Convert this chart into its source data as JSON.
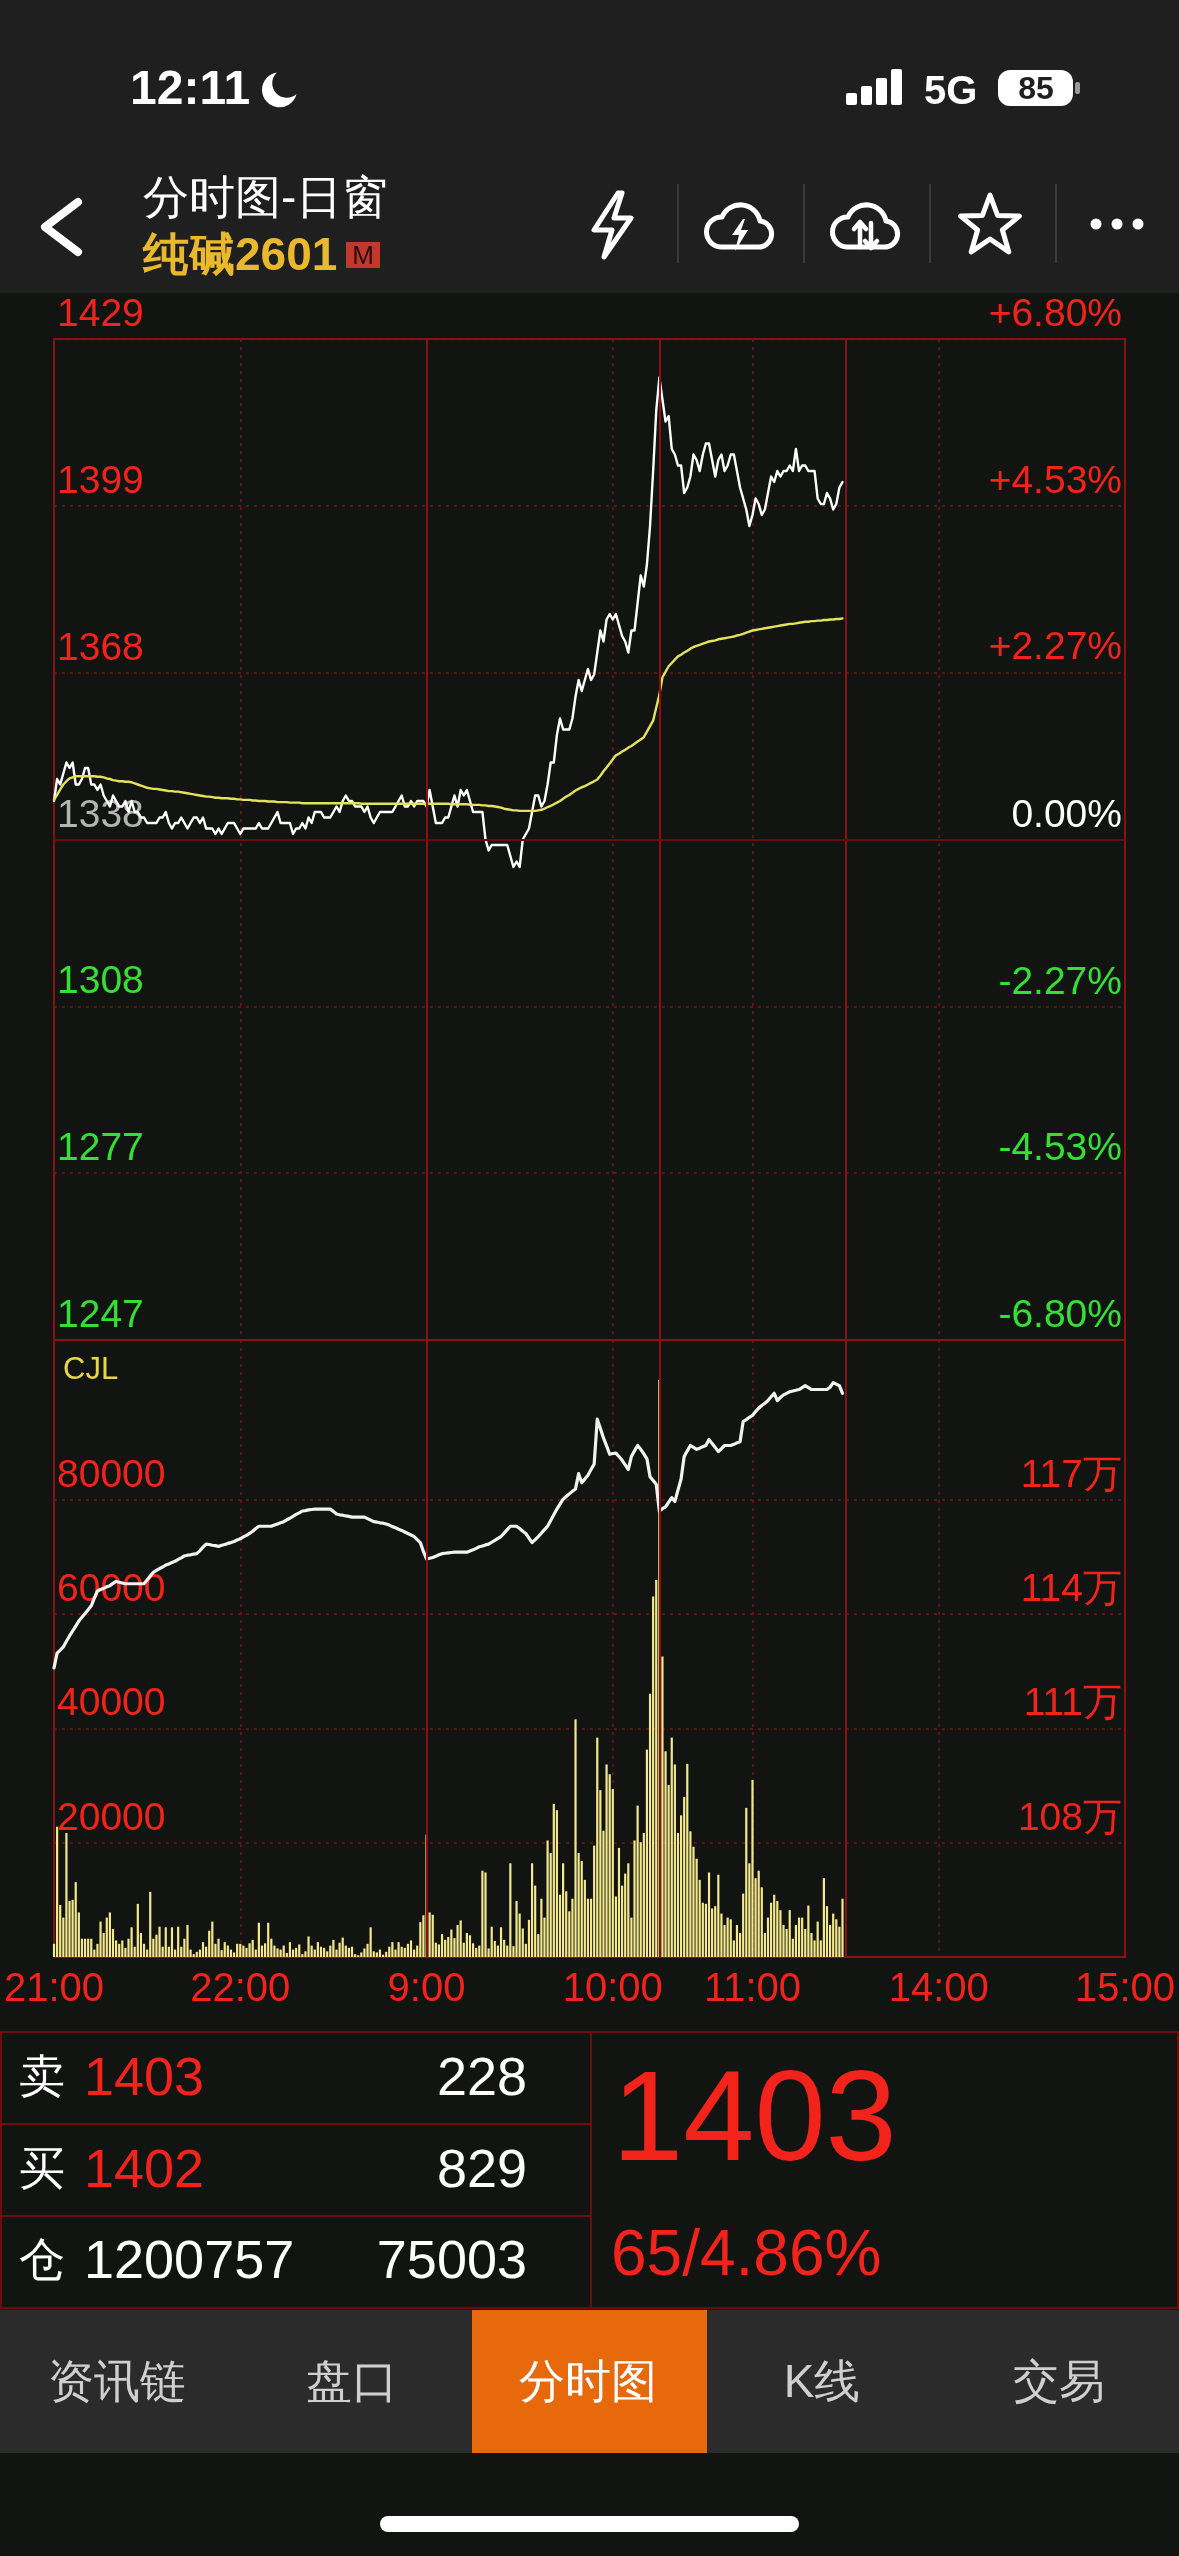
{
  "chart_data": [
    {
      "type": "other",
      "title": "分时图-日窗",
      "subtitle": "纯碱2601",
      "annotations": [
        "12:11",
        "5G",
        "85",
        "M"
      ]
    },
    {
      "type": "line",
      "grid": true,
      "categories": [
        null,
        null,
        null,
        null,
        null,
        null,
        null,
        null,
        null,
        null,
        null,
        null,
        null,
        null,
        null,
        null,
        null,
        null,
        null,
        null,
        null,
        null,
        null,
        null,
        null,
        null,
        null,
        null,
        null,
        null,
        null,
        null,
        null,
        null,
        null,
        null,
        null,
        null,
        null,
        null,
        null,
        null,
        null,
        null,
        null,
        null,
        null,
        null,
        null,
        null,
        null,
        null,
        null,
        null,
        null,
        null,
        null,
        null,
        null,
        null,
        null,
        null,
        null,
        null,
        null,
        null,
        null,
        null,
        null,
        null,
        null,
        null,
        null,
        null,
        null,
        null,
        null,
        null,
        null,
        null,
        null,
        null,
        null,
        null,
        null,
        null,
        null,
        null,
        null,
        null,
        null,
        null,
        null,
        null,
        null,
        null,
        null,
        null,
        null,
        null,
        null,
        null,
        null,
        null,
        null,
        null,
        null,
        null,
        null,
        null,
        null,
        null,
        null,
        null,
        null,
        null,
        null,
        null,
        null,
        null,
        null,
        null,
        null,
        null,
        null,
        null,
        null,
        null,
        null,
        null,
        null,
        null,
        null,
        null,
        null,
        null,
        null,
        null,
        null,
        null,
        null,
        null,
        null,
        null,
        null,
        null,
        null,
        null,
        null,
        null,
        null,
        null,
        null,
        null,
        null,
        null,
        null,
        null,
        null,
        null,
        null,
        null,
        null,
        null,
        null,
        null,
        null,
        null,
        null,
        null,
        null,
        null,
        null,
        null,
        null,
        null,
        null,
        null,
        null,
        null,
        null,
        null,
        null,
        null,
        null,
        null,
        null,
        null,
        null,
        null,
        null,
        null,
        null,
        null,
        null,
        null,
        null,
        null,
        null,
        null,
        null,
        null,
        null,
        null,
        null,
        null,
        null,
        null,
        null,
        null,
        null,
        null,
        null,
        null,
        null,
        null,
        null,
        null,
        null,
        null,
        null,
        null,
        null,
        null,
        null,
        null,
        null,
        null,
        null,
        null,
        null,
        null,
        null,
        null,
        null,
        null,
        null,
        null,
        null,
        null,
        null,
        null,
        null,
        null,
        null,
        null,
        null,
        null,
        null,
        null,
        null,
        null,
        null,
        null,
        null,
        null,
        null,
        null,
        null,
        null,
        null,
        null,
        null,
        null,
        null,
        null,
        null,
        null,
        null,
        null,
        null,
        null,
        null,
        null,
        null,
        null,
        null,
        null,
        null,
        null,
        null,
        null,
        null,
        null,
        null,
        null,
        null,
        null,
        null,
        null,
        null,
        null,
        null,
        null,
        null,
        null,
        null,
        null,
        null,
        null,
        null,
        null,
        null,
        null,
        null,
        null,
        null,
        null,
        null,
        null,
        null,
        null,
        null,
        null,
        null,
        null,
        null,
        null,
        null,
        null,
        null,
        null,
        null,
        null,
        null,
        null,
        null,
        null,
        null,
        null,
        null,
        null,
        null,
        null,
        null,
        null,
        null,
        null,
        null,
        null,
        null,
        null,
        null,
        null,
        null,
        null
      ],
      "ylim": [
        1247,
        1429
      ],
      "yticks": [
        1247,
        {
          "value": 1277.33,
          "label": "1277"
        },
        {
          "value": 1307.67,
          "label": "1308"
        },
        1338,
        {
          "value": 1368.33,
          "label": "1368"
        },
        {
          "value": 1398.67,
          "label": "1399"
        },
        1429
      ],
      "y2lim": [
        -6.8,
        6.8
      ],
      "y2ticks": [
        {
          "value": -6.8,
          "label": "-6.80%"
        },
        {
          "value": -4.53,
          "label": "-4.53%"
        },
        {
          "value": -2.27,
          "label": "-2.27%"
        },
        {
          "value": 0,
          "label": "0.00%"
        },
        {
          "value": 2.27,
          "label": "+2.27%"
        },
        {
          "value": 4.53,
          "label": "+4.53%"
        },
        {
          "value": 6.8,
          "label": "+6.80%"
        }
      ],
      "ref_lines": [
        {
          "axis": "y",
          "value": 1338,
          "color": "#6e0a0a",
          "line_style": "solid"
        }
      ],
      "series": [
        {
          "color": "#ffffff",
          "values": [
            1345,
            1349,
            1348,
            1350,
            1352,
            1351,
            1352,
            1348,
            1348,
            1349,
            1351,
            1351,
            1348,
            1348,
            1347,
            1348,
            1346,
            1345,
            1344,
            1346,
            1345,
            1344,
            1344,
            1345,
            1343,
            1345,
            1343,
            1343,
            1342,
            1342,
            1341,
            1341,
            1341,
            1341,
            1342,
            1342,
            1343,
            1341,
            1340,
            1341,
            1341,
            1342,
            1341,
            1340,
            1341,
            1342,
            1342,
            1341,
            1342,
            1340,
            1340,
            1340,
            1339,
            1340,
            1339,
            1340,
            1341,
            1341,
            1341,
            1340,
            1339,
            1340,
            1340,
            1340,
            1340,
            1340,
            1341,
            1340,
            1340,
            1340,
            1341,
            1342,
            1343,
            1341,
            1341,
            1341,
            1341,
            1339,
            1340,
            1340,
            1341,
            1340,
            1342,
            1341,
            1343,
            1343,
            1343,
            1342,
            1342,
            1342,
            1343,
            1344,
            1343,
            1345,
            1346,
            1345,
            1345,
            1344,
            1344,
            1344,
            1343,
            1344,
            1342,
            1341,
            1342,
            1343,
            1343,
            1343,
            1343,
            1343,
            1344,
            1345,
            1346,
            1344,
            1344,
            1345,
            1344,
            1345,
            1345,
            1345,
            1344,
            1347,
            1344,
            1341,
            1341,
            1341,
            1342,
            1342,
            1344,
            1346,
            1344,
            1347,
            1346,
            1347,
            1345,
            1343,
            1343,
            1343,
            1343,
            1338,
            1336,
            1337,
            1337,
            1337,
            1337,
            1337,
            1337,
            1335,
            1333,
            1334,
            1333,
            1338,
            1339,
            1340,
            1343,
            1346,
            1346,
            1344,
            1345,
            1348,
            1352,
            1352,
            1357,
            1360,
            1358,
            1358,
            1358,
            1360,
            1364,
            1367,
            1365,
            1367,
            1369,
            1367,
            1368,
            1372,
            1376,
            1374,
            1378,
            1379,
            1378,
            1379,
            1377,
            1375,
            1374,
            1372,
            1376,
            1376,
            1381,
            1386,
            1384,
            1388,
            1395,
            1405,
            1416,
            1422,
            1418,
            1414,
            1415,
            1409,
            1408,
            1406,
            1406,
            1401,
            1402,
            1404,
            1408,
            1407,
            1405,
            1408,
            1410,
            1410,
            1407,
            1404,
            1407,
            1408,
            1405,
            1406,
            1408,
            1408,
            1405,
            1402,
            1400,
            1398,
            1395,
            1397,
            1400,
            1399,
            1397,
            1398,
            1401,
            1404,
            1403,
            1405,
            1404,
            1405,
            1405,
            1406,
            1405,
            1409,
            1405,
            1406,
            1406,
            1405,
            1405,
            1405,
            1400,
            1399,
            1399,
            1401,
            1400,
            1398,
            1399,
            1402,
            1403,
            null,
            null,
            null,
            null,
            null,
            null,
            null,
            null,
            null,
            null,
            null,
            null,
            null,
            null,
            null,
            null,
            null,
            null,
            null,
            null,
            null,
            null,
            null,
            null,
            null,
            null,
            null,
            null,
            null,
            null,
            null,
            null,
            null,
            null,
            null,
            null,
            null,
            null,
            null,
            null,
            null,
            null,
            null,
            null,
            null,
            null,
            null,
            null,
            null,
            null,
            null,
            null,
            null,
            null,
            null,
            null,
            null,
            null,
            null,
            null,
            null,
            null,
            null,
            null,
            null,
            null,
            null,
            null,
            null,
            null,
            null,
            null,
            null,
            null,
            null,
            null,
            null,
            null,
            null,
            null,
            null,
            null,
            null,
            null,
            null,
            null,
            null,
            null,
            null,
            null,
            null
          ]
        },
        {
          "color": "#e2e25c",
          "values": [
            1345.2,
            1346.1,
            1347.1,
            1348.0,
            1348.6,
            1349.1,
            1349.3,
            1349.5,
            1349.5,
            1349.5,
            1349.5,
            1349.5,
            1349.5,
            1349.5,
            1349.4,
            1349.4,
            1349.3,
            1349.1,
            1349.0,
            1348.8,
            1348.7,
            1348.6,
            1348.6,
            1348.5,
            1348.5,
            1348.4,
            1348.2,
            1348.0,
            1347.8,
            1347.6,
            1347.4,
            1347.3,
            1347.2,
            1347.2,
            1347.1,
            1347.0,
            1346.9,
            1346.8,
            1346.8,
            1346.7,
            1346.7,
            1346.6,
            1346.5,
            1346.4,
            1346.3,
            1346.2,
            1346.1,
            1346.0,
            1345.9,
            1345.8,
            1345.8,
            1345.7,
            1345.6,
            1345.6,
            1345.5,
            1345.5,
            1345.5,
            1345.4,
            1345.4,
            1345.3,
            1345.3,
            1345.2,
            1345.2,
            1345.2,
            1345.1,
            1345.1,
            1345.0,
            1345.0,
            1345.0,
            1344.9,
            1344.9,
            1344.9,
            1344.8,
            1344.8,
            1344.8,
            1344.8,
            1344.7,
            1344.7,
            1344.7,
            1344.7,
            1344.6,
            1344.6,
            1344.6,
            1344.6,
            1344.6,
            1344.6,
            1344.6,
            1344.6,
            1344.6,
            1344.6,
            1344.6,
            1344.6,
            1344.6,
            1344.6,
            1344.6,
            1344.6,
            1344.6,
            1344.6,
            1344.6,
            1344.5,
            1344.5,
            1344.5,
            1344.5,
            1344.5,
            1344.5,
            1344.5,
            1344.5,
            1344.5,
            1344.5,
            1344.5,
            1344.5,
            1344.5,
            1344.5,
            1344.5,
            1344.5,
            1344.5,
            1344.5,
            1344.5,
            1344.5,
            1344.5,
            1344.5,
            1344.5,
            1344.5,
            1344.5,
            1344.5,
            1344.5,
            1344.5,
            1344.5,
            1344.4,
            1344.4,
            1344.4,
            1344.4,
            1344.4,
            1344.4,
            1344.3,
            1344.3,
            1344.3,
            1344.3,
            1344.2,
            1344.2,
            1344.1,
            1344.1,
            1344.0,
            1343.9,
            1343.8,
            1343.6,
            1343.5,
            1343.4,
            1343.3,
            1343.3,
            1343.2,
            1343.2,
            1343.2,
            1343.2,
            1343.2,
            1343.2,
            1343.3,
            1343.4,
            1343.6,
            1343.9,
            1344.1,
            1344.4,
            1344.7,
            1345.0,
            1345.4,
            1345.8,
            1346.1,
            1346.5,
            1346.9,
            1347.2,
            1347.5,
            1347.7,
            1348.0,
            1348.3,
            1348.6,
            1348.9,
            1349.6,
            1350.4,
            1351.1,
            1351.8,
            1352.6,
            1353.3,
            1353.6,
            1354.0,
            1354.3,
            1354.7,
            1355.0,
            1355.4,
            1355.8,
            1356.2,
            1356.6,
            1357.6,
            1358.6,
            1359.6,
            1362.0,
            1364.3,
            1367.5,
            1368.5,
            1369.5,
            1370.1,
            1370.7,
            1371.3,
            1371.6,
            1372.0,
            1372.3,
            1372.7,
            1373.0,
            1373.2,
            1373.4,
            1373.6,
            1373.8,
            1374.0,
            1374.1,
            1374.2,
            1374.4,
            1374.5,
            1374.6,
            1374.7,
            1374.8,
            1374.9,
            1375.1,
            1375.2,
            1375.4,
            1375.6,
            1375.8,
            1376.0,
            1376.1,
            1376.2,
            1376.3,
            1376.4,
            1376.5,
            1376.6,
            1376.7,
            1376.8,
            1376.9,
            1377.0,
            1377.1,
            1377.2,
            1377.2,
            1377.3,
            1377.4,
            1377.5,
            1377.6,
            1377.6,
            1377.7,
            1377.7,
            1377.8,
            1377.8,
            1377.9,
            1377.9,
            1378.0,
            1378.0,
            1378.1,
            1378.1,
            1378.2,
            null,
            null,
            null,
            null,
            null,
            null,
            null,
            null,
            null,
            null,
            null,
            null,
            null,
            null,
            null,
            null,
            null,
            null,
            null,
            null,
            null,
            null,
            null,
            null,
            null,
            null,
            null,
            null,
            null,
            null,
            null,
            null,
            null,
            null,
            null,
            null,
            null,
            null,
            null,
            null,
            null,
            null,
            null,
            null,
            null,
            null,
            null,
            null,
            null,
            null,
            null,
            null,
            null,
            null,
            null,
            null,
            null,
            null,
            null,
            null,
            null,
            null,
            null,
            null,
            null,
            null,
            null,
            null,
            null,
            null,
            null,
            null,
            null,
            null,
            null,
            null,
            null,
            null,
            null,
            null,
            null,
            null,
            null,
            null,
            null,
            null,
            null,
            null,
            null,
            null,
            null
          ]
        }
      ]
    },
    {
      "type": "bar",
      "title": "CJL",
      "grid": true,
      "categories": [
        "21:00",
        null,
        null,
        null,
        null,
        null,
        null,
        null,
        null,
        null,
        null,
        null,
        null,
        null,
        null,
        null,
        null,
        null,
        null,
        null,
        null,
        null,
        null,
        null,
        null,
        null,
        null,
        null,
        null,
        null,
        null,
        null,
        null,
        null,
        null,
        null,
        null,
        null,
        null,
        null,
        null,
        null,
        null,
        null,
        null,
        null,
        null,
        null,
        null,
        null,
        null,
        null,
        null,
        null,
        null,
        null,
        null,
        null,
        null,
        null,
        "22:00",
        null,
        null,
        null,
        null,
        null,
        null,
        null,
        null,
        null,
        null,
        null,
        null,
        null,
        null,
        null,
        null,
        null,
        null,
        null,
        null,
        null,
        null,
        null,
        null,
        null,
        null,
        null,
        null,
        null,
        null,
        null,
        null,
        null,
        null,
        null,
        null,
        null,
        null,
        null,
        null,
        null,
        null,
        null,
        null,
        null,
        null,
        null,
        null,
        null,
        null,
        null,
        null,
        null,
        null,
        null,
        null,
        null,
        null,
        null,
        "9:00",
        null,
        null,
        null,
        null,
        null,
        null,
        null,
        null,
        null,
        null,
        null,
        null,
        null,
        null,
        null,
        null,
        null,
        null,
        null,
        null,
        null,
        null,
        null,
        null,
        null,
        null,
        null,
        null,
        null,
        null,
        null,
        null,
        null,
        null,
        null,
        null,
        null,
        null,
        null,
        null,
        null,
        null,
        null,
        null,
        null,
        null,
        null,
        null,
        null,
        null,
        null,
        null,
        null,
        null,
        null,
        null,
        null,
        null,
        null,
        "10:00",
        null,
        null,
        null,
        null,
        null,
        null,
        null,
        null,
        null,
        null,
        null,
        null,
        null,
        null,
        null,
        null,
        null,
        null,
        null,
        null,
        null,
        null,
        null,
        null,
        null,
        null,
        null,
        null,
        null,
        null,
        null,
        null,
        null,
        null,
        null,
        null,
        null,
        null,
        null,
        null,
        null,
        null,
        null,
        null,
        "11:00",
        null,
        null,
        null,
        null,
        null,
        null,
        null,
        null,
        null,
        null,
        null,
        null,
        null,
        null,
        null,
        null,
        null,
        null,
        null,
        null,
        null,
        null,
        null,
        null,
        null,
        null,
        null,
        null,
        null,
        null,
        null,
        null,
        null,
        null,
        null,
        null,
        null,
        null,
        null,
        null,
        null,
        null,
        null,
        null,
        null,
        null,
        null,
        null,
        null,
        null,
        null,
        null,
        null,
        null,
        null,
        null,
        null,
        null,
        null,
        "14:00",
        null,
        null,
        null,
        null,
        null,
        null,
        null,
        null,
        null,
        null,
        null,
        null,
        null,
        null,
        null,
        null,
        null,
        null,
        null,
        null,
        null,
        null,
        null,
        null,
        null,
        null,
        null,
        null,
        null,
        null,
        null,
        null,
        null,
        null,
        null,
        null,
        null,
        null,
        null,
        null,
        null,
        null,
        null,
        null,
        null,
        null,
        null,
        null,
        null,
        null,
        null,
        null,
        null,
        null,
        null,
        null,
        null,
        null,
        null,
        "15:00"
      ],
      "ylim": [
        0,
        108000
      ],
      "yticks": [
        20000,
        40000,
        60000,
        80000
      ],
      "y2lim": [
        105,
        121.2
      ],
      "y2ticks": [
        {
          "value": 108,
          "label": "108万"
        },
        {
          "value": 111,
          "label": "111万"
        },
        {
          "value": 114,
          "label": "114万"
        },
        {
          "value": 117,
          "label": "117万"
        }
      ],
      "series": [
        {
          "color": "#f3e98c",
          "values": [
            2300,
            22800,
            9100,
            6900,
            21700,
            9800,
            10000,
            13100,
            7800,
            3200,
            3200,
            3200,
            3200,
            1300,
            2300,
            6200,
            4200,
            6900,
            7800,
            4900,
            2900,
            2300,
            2900,
            1600,
            3200,
            5200,
            1800,
            9300,
            4200,
            2300,
            1300,
            11400,
            3200,
            3900,
            5300,
            1800,
            5200,
            1800,
            5200,
            1300,
            5300,
            1800,
            3200,
            5600,
            1300,
            500,
            900,
            1300,
            2600,
            1800,
            4600,
            6200,
            2300,
            3200,
            1200,
            2600,
            2000,
            1300,
            800,
            2300,
            2300,
            2000,
            1600,
            2400,
            3000,
            1300,
            6000,
            2000,
            2400,
            6000,
            3200,
            2000,
            1500,
            1300,
            2000,
            700,
            2600,
            1300,
            1600,
            2200,
            500,
            1000,
            3600,
            2000,
            1300,
            2600,
            1800,
            1600,
            1000,
            2000,
            3000,
            1300,
            2500,
            3400,
            2000,
            1600,
            1800,
            500,
            300,
            800,
            1500,
            2300,
            5200,
            1000,
            800,
            1300,
            400,
            900,
            1800,
            2600,
            1300,
            2600,
            1800,
            1600,
            2300,
            2900,
            1300,
            2000,
            6100,
            7300,
            21400,
            7800,
            7400,
            2500,
            2200,
            4000,
            3000,
            3500,
            4800,
            3300,
            5600,
            6400,
            2500,
            4200,
            3800,
            2400,
            1600,
            2000,
            15100,
            14800,
            1500,
            5300,
            2800,
            2000,
            5200,
            3000,
            2000,
            16400,
            1900,
            9800,
            7600,
            5000,
            2300,
            6500,
            16400,
            12500,
            4000,
            10200,
            6900,
            20400,
            18200,
            26800,
            25700,
            10900,
            16400,
            11500,
            8000,
            10200,
            41600,
            18200,
            16800,
            13500,
            10200,
            10200,
            19500,
            38400,
            29200,
            22100,
            33700,
            32000,
            29400,
            10600,
            19100,
            12500,
            14600,
            16400,
            6900,
            20400,
            26500,
            20100,
            21700,
            36300,
            46100,
            63100,
            66000,
            101000,
            52600,
            36000,
            30100,
            38400,
            33700,
            21700,
            24800,
            28000,
            33800,
            22000,
            19300,
            17200,
            13500,
            9500,
            9300,
            14800,
            8500,
            8900,
            14400,
            7600,
            5600,
            6900,
            6600,
            2900,
            5600,
            4200,
            11100,
            26100,
            16400,
            31000,
            13800,
            15100,
            12200,
            4200,
            6900,
            9500,
            10900,
            9800,
            8200,
            5600,
            4900,
            8200,
            3200,
            5600,
            6900,
            6900,
            4900,
            9000,
            4200,
            2900,
            6200,
            2900,
            13800,
            8900,
            5600,
            7600,
            6600,
            5300,
            10200,
            null,
            null,
            null,
            null,
            null,
            null,
            null,
            null,
            null,
            null,
            null,
            null,
            null,
            null,
            null,
            null,
            null,
            null,
            null,
            null,
            null,
            null,
            null,
            null,
            null,
            null,
            null,
            null,
            null,
            null,
            null,
            null,
            null,
            null,
            null,
            null,
            null,
            null,
            null,
            null,
            null,
            null,
            null,
            null,
            null,
            null,
            null,
            null,
            null,
            null,
            null,
            null,
            null,
            null,
            null,
            null,
            null,
            null,
            null,
            null,
            null,
            null,
            null,
            null,
            null,
            null,
            null,
            null,
            null,
            null,
            null,
            null,
            null,
            null,
            null,
            null,
            null,
            null,
            null,
            null,
            null,
            null,
            null,
            null,
            null,
            null,
            null,
            null,
            null,
            null,
            null
          ]
        },
        {
          "type": "line",
          "axis": "y2",
          "color": "#f2f2f2",
          "values": [
            112.59,
            112.98,
            113.06,
            113.14,
            113.29,
            113.43,
            113.56,
            113.69,
            113.82,
            113.92,
            114.02,
            114.12,
            114.22,
            114.42,
            114.61,
            114.65,
            114.68,
            114.72,
            114.75,
            114.81,
            114.86,
            114.84,
            114.82,
            114.8,
            114.8,
            114.8,
            114.8,
            114.8,
            114.8,
            114.8,
            114.9,
            115.0,
            115.1,
            115.15,
            115.2,
            115.24,
            115.29,
            115.32,
            115.36,
            115.39,
            115.44,
            115.48,
            115.53,
            115.55,
            115.56,
            115.58,
            115.59,
            115.67,
            115.76,
            115.84,
            115.83,
            115.81,
            115.8,
            115.78,
            115.81,
            115.83,
            115.86,
            115.88,
            115.91,
            115.95,
            115.98,
            116.03,
            116.07,
            116.12,
            116.18,
            116.25,
            116.31,
            116.31,
            116.31,
            116.31,
            116.31,
            116.34,
            116.37,
            116.4,
            116.43,
            116.48,
            116.52,
            116.57,
            116.62,
            116.66,
            116.71,
            116.72,
            116.74,
            116.75,
            116.76,
            116.76,
            116.76,
            116.76,
            116.76,
            116.76,
            116.7,
            116.63,
            116.61,
            116.6,
            116.58,
            116.57,
            116.55,
            116.55,
            116.55,
            116.55,
            116.55,
            116.51,
            116.47,
            116.43,
            116.42,
            116.4,
            116.39,
            116.37,
            116.34,
            116.3,
            116.27,
            116.23,
            116.2,
            116.16,
            116.12,
            116.08,
            116.04,
            115.96,
            115.88,
            115.65,
            115.45,
            115.47,
            115.49,
            115.52,
            115.56,
            115.59,
            115.6,
            115.61,
            115.62,
            115.63,
            115.63,
            115.63,
            115.63,
            115.63,
            115.66,
            115.69,
            115.73,
            115.77,
            115.79,
            115.82,
            115.84,
            115.89,
            115.94,
            115.99,
            116.04,
            116.13,
            116.22,
            116.31,
            116.31,
            116.31,
            116.25,
            116.18,
            116.12,
            116.0,
            115.88,
            115.96,
            116.04,
            116.13,
            116.22,
            116.31,
            116.46,
            116.61,
            116.76,
            116.89,
            117.02,
            117.09,
            117.16,
            117.23,
            117.29,
            117.69,
            117.45,
            117.55,
            117.65,
            117.8,
            117.94,
            119.12,
            118.88,
            118.63,
            118.42,
            118.2,
            118.22,
            118.23,
            118.14,
            118.04,
            117.92,
            117.8,
            118.14,
            118.29,
            118.43,
            118.33,
            118.21,
            118.08,
            117.61,
            117.51,
            117.41,
            116.71,
            116.77,
            116.82,
            116.94,
            117.06,
            116.96,
            117.26,
            117.55,
            118.14,
            118.29,
            118.43,
            118.38,
            118.33,
            118.36,
            118.4,
            118.43,
            118.59,
            118.48,
            118.38,
            118.27,
            118.35,
            118.43,
            118.43,
            118.43,
            118.46,
            118.5,
            118.53,
            119.06,
            119.11,
            119.17,
            119.22,
            119.32,
            119.41,
            119.48,
            119.54,
            119.61,
            119.71,
            119.8,
            119.61,
            119.69,
            119.76,
            119.8,
            119.84,
            119.86,
            119.88,
            119.9,
            119.95,
            120.0,
            119.95,
            119.9,
            119.9,
            119.9,
            119.9,
            119.9,
            119.9,
            119.96,
            120.08,
            120.04,
            120.0,
            119.8,
            null,
            null,
            null,
            null,
            null,
            null,
            null,
            null,
            null,
            null,
            null,
            null,
            null,
            null,
            null,
            null,
            null,
            null,
            null,
            null,
            null,
            null,
            null,
            null,
            null,
            null,
            null,
            null,
            null,
            null,
            null,
            null,
            null,
            null,
            null,
            null,
            null,
            null,
            null,
            null,
            null,
            null,
            null,
            null,
            null,
            null,
            null,
            null,
            null,
            null,
            null,
            null,
            null,
            null,
            null,
            null,
            null,
            null,
            null,
            null,
            null,
            null,
            null,
            null,
            null,
            null,
            null,
            null,
            null,
            null,
            null,
            null,
            null,
            null,
            null,
            null,
            null,
            null,
            null,
            null,
            null,
            null,
            null,
            null,
            null,
            null,
            null,
            null,
            null,
            null,
            null
          ]
        }
      ]
    },
    {
      "type": "other",
      "annotations": [
        "卖",
        "1403",
        "228",
        "买",
        "1402",
        "829",
        "仓",
        "1200757",
        "75003",
        "1403",
        "65/4.86%"
      ]
    },
    {
      "type": "other",
      "annotations": [
        "资讯链",
        "盘口",
        "分时图",
        "K线",
        "交易"
      ]
    }
  ]
}
